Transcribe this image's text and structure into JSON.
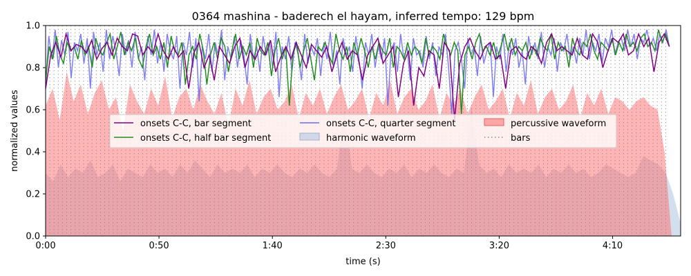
{
  "chart_data": {
    "type": "line",
    "title": "0364 mashina - baderech el hayam, inferred tempo: 129 bpm",
    "xlabel": "time (s)",
    "ylabel": "normalized values",
    "xlim": [
      0,
      280
    ],
    "ylim": [
      0,
      1.0
    ],
    "x_ticks": [
      {
        "value": 0,
        "label": "0:00"
      },
      {
        "value": 50,
        "label": "0:50"
      },
      {
        "value": 100,
        "label": "1:40"
      },
      {
        "value": 150,
        "label": "2:30"
      },
      {
        "value": 200,
        "label": "3:20"
      },
      {
        "value": 250,
        "label": "4:10"
      }
    ],
    "y_ticks": [
      {
        "value": 0.0,
        "label": "0.0"
      },
      {
        "value": 0.2,
        "label": "0.2"
      },
      {
        "value": 0.4,
        "label": "0.4"
      },
      {
        "value": 0.6,
        "label": "0.6"
      },
      {
        "value": 0.8,
        "label": "0.8"
      },
      {
        "value": 1.0,
        "label": "1.0"
      }
    ],
    "grid": false,
    "legend_position": "center",
    "bars": {
      "start": 0,
      "end": 275,
      "interval": 1.86
    },
    "series": [
      {
        "name": "onsets C-C, bar segment",
        "color": "#800080",
        "x_start": 0,
        "x_end": 275,
        "values": [
          0.7,
          0.86,
          0.92,
          0.85,
          0.96,
          0.88,
          0.91,
          0.9,
          0.87,
          0.93,
          0.84,
          0.89,
          0.92,
          0.86,
          0.94,
          0.9,
          0.88,
          0.96,
          0.95,
          0.86,
          0.9,
          0.87,
          0.96,
          0.88,
          0.84,
          0.9,
          0.85,
          0.88,
          0.7,
          0.87,
          0.92,
          0.8,
          0.86,
          0.74,
          0.9,
          0.86,
          0.82,
          0.9,
          0.94,
          0.8,
          0.88,
          0.84,
          0.9,
          0.86,
          0.93,
          0.78,
          0.85,
          0.9,
          0.84,
          0.92,
          0.86,
          0.8,
          0.91,
          0.88,
          0.85,
          0.9,
          0.78,
          0.86,
          0.92,
          0.84,
          0.88,
          0.86,
          0.74,
          0.86,
          0.9,
          0.94,
          0.82,
          0.86,
          0.9,
          0.66,
          0.82,
          0.88,
          0.62,
          0.8,
          0.76,
          0.88,
          0.86,
          0.7,
          0.92,
          0.88,
          0.55,
          0.82,
          0.9,
          0.94,
          0.88,
          0.84,
          0.9,
          0.92,
          0.84,
          0.86,
          0.7,
          0.88,
          0.9,
          0.86,
          0.84,
          0.9,
          0.88,
          0.82,
          0.92,
          0.96,
          0.88,
          0.9,
          0.88,
          0.86,
          0.94,
          0.86,
          0.84,
          0.96,
          0.92,
          0.8,
          0.88,
          0.94,
          0.92,
          0.96,
          0.86,
          0.88,
          0.96,
          0.9,
          0.94,
          0.78,
          0.92,
          0.96,
          0.9
        ]
      },
      {
        "name": "onsets C-C, half bar segment",
        "color": "#228b22",
        "x_start": 0,
        "x_end": 275,
        "values": [
          0.74,
          0.9,
          0.84,
          0.95,
          0.86,
          0.82,
          0.92,
          0.88,
          0.9,
          0.84,
          0.93,
          0.86,
          0.9,
          0.8,
          0.94,
          0.88,
          0.86,
          0.92,
          0.96,
          0.84,
          0.9,
          0.97,
          0.86,
          0.92,
          0.88,
          0.94,
          0.84,
          0.8,
          0.9,
          0.96,
          0.86,
          0.9,
          0.84,
          0.92,
          0.8,
          0.95,
          0.88,
          0.86,
          0.92,
          0.72,
          0.86,
          0.9,
          0.84,
          0.96,
          0.88,
          0.72,
          0.86,
          0.92,
          0.84,
          0.94,
          0.9,
          0.78,
          0.88,
          0.96,
          0.84,
          0.9,
          0.86,
          0.92,
          0.8,
          0.94,
          0.88,
          0.86,
          0.92,
          0.76,
          0.88,
          0.94,
          0.84,
          0.9,
          0.62,
          0.86,
          0.92,
          0.8,
          0.88,
          0.94,
          0.84,
          0.74,
          0.9,
          0.88,
          0.92,
          0.86,
          0.82,
          0.96,
          0.88,
          0.84,
          0.9,
          0.78,
          0.92,
          0.86,
          0.94,
          0.88,
          0.8,
          0.9,
          0.84,
          0.92,
          0.88,
          0.86,
          0.94,
          0.8,
          0.9,
          0.88,
          0.84,
          0.92,
          0.86,
          0.9,
          0.88,
          0.82,
          0.94,
          0.86,
          0.9,
          0.88,
          0.84,
          0.96,
          0.9,
          0.86,
          0.92,
          0.88,
          0.58,
          0.86,
          0.9,
          0.84,
          0.92,
          0.96,
          0.88,
          0.9,
          0.86,
          0.92,
          0.84,
          0.9,
          0.96,
          0.88,
          0.94,
          0.86,
          0.9,
          0.88,
          0.92,
          0.84,
          0.9,
          0.86,
          0.94,
          0.9,
          0.88,
          0.96,
          0.84,
          0.92,
          0.88,
          0.9,
          0.8,
          0.94,
          0.88,
          0.86,
          0.92,
          0.9,
          0.96,
          0.88,
          0.84,
          0.92,
          0.9,
          0.88,
          0.94,
          0.86,
          0.92,
          0.88,
          0.96,
          0.9,
          0.92,
          0.88,
          0.94,
          0.96,
          0.9,
          0.92,
          0.88,
          0.98,
          0.92,
          0.96,
          0.9
        ]
      },
      {
        "name": "onsets C-C, quarter segment",
        "color": "#6a6aee",
        "x_start": 0,
        "x_end": 275,
        "values": [
          0.72,
          0.95,
          0.84,
          0.98,
          0.8,
          0.93,
          0.86,
          0.97,
          0.75,
          0.92,
          0.88,
          0.96,
          0.82,
          0.94,
          0.7,
          0.97,
          0.86,
          0.92,
          0.78,
          0.98,
          0.84,
          0.95,
          0.88,
          0.76,
          0.96,
          0.86,
          0.93,
          0.8,
          0.97,
          0.84,
          0.9,
          0.74,
          0.95,
          0.86,
          0.98,
          0.82,
          0.92,
          0.78,
          0.96,
          0.88,
          0.84,
          0.95,
          0.7,
          0.92,
          0.86,
          0.97,
          0.8,
          0.94,
          0.64,
          0.9,
          0.84,
          0.96,
          0.78,
          0.92,
          0.86,
          0.98,
          0.74,
          0.9,
          0.84,
          0.95,
          0.8,
          0.93,
          0.86,
          0.72,
          0.96,
          0.84,
          0.9,
          0.78,
          0.95,
          0.86,
          0.92,
          0.8,
          0.97,
          0.66,
          0.9,
          0.84,
          0.95,
          0.78,
          0.92,
          0.86,
          0.74,
          0.96,
          0.82,
          0.9,
          0.86,
          0.94,
          0.76,
          0.92,
          0.84,
          0.97,
          0.8,
          0.88,
          0.72,
          0.94,
          0.86,
          0.9,
          0.78,
          0.95,
          0.84,
          0.7,
          0.92,
          0.86,
          0.96,
          0.8,
          0.9,
          0.84,
          0.94,
          0.62,
          0.88,
          0.92,
          0.78,
          0.96,
          0.84,
          0.9,
          0.74,
          0.94,
          0.86,
          0.88,
          0.8,
          0.95,
          0.84,
          0.92,
          0.76,
          0.9,
          0.86,
          0.96,
          0.8,
          0.58,
          0.88,
          0.92,
          0.84,
          0.7,
          0.94,
          0.86,
          0.9,
          0.76,
          0.95,
          0.82,
          0.88,
          0.92,
          0.66,
          0.9,
          0.84,
          0.96,
          0.78,
          0.92,
          0.86,
          0.94,
          0.8,
          0.88,
          0.72,
          0.95,
          0.86,
          0.92,
          0.84,
          0.97,
          0.8,
          0.9,
          0.86,
          0.94,
          0.78,
          0.92,
          0.88,
          0.96,
          0.84,
          0.9,
          0.82,
          0.94,
          0.86,
          0.98,
          0.84,
          0.92,
          0.88,
          0.96,
          0.82,
          0.94,
          0.9,
          0.98,
          0.86,
          0.92,
          0.94,
          0.88,
          0.98,
          0.9,
          0.96,
          0.84,
          0.94,
          0.92,
          0.98,
          0.9,
          0.94,
          0.88,
          0.96,
          0.92,
          0.98,
          0.9
        ]
      },
      {
        "name": "harmonic waveform",
        "color": "#b0c4de",
        "x_start": 0,
        "x_end": 280,
        "values": [
          0.3,
          0.26,
          0.34,
          0.28,
          0.32,
          0.3,
          0.36,
          0.28,
          0.3,
          0.34,
          0.26,
          0.32,
          0.3,
          0.28,
          0.34,
          0.3,
          0.32,
          0.28,
          0.34,
          0.3,
          0.36,
          0.32,
          0.28,
          0.34,
          0.3,
          0.32,
          0.3,
          0.34,
          0.28,
          0.32,
          0.3,
          0.34,
          0.3,
          0.28,
          0.32,
          0.3,
          0.34,
          0.3,
          0.28,
          0.32,
          0.6,
          0.32,
          0.3,
          0.34,
          0.3,
          0.28,
          0.32,
          0.3,
          0.34,
          0.28,
          0.32,
          0.3,
          0.34,
          0.3,
          0.28,
          0.32,
          0.3,
          0.62,
          0.34,
          0.3,
          0.32,
          0.28,
          0.34,
          0.3,
          0.32,
          0.3,
          0.34,
          0.28,
          0.32,
          0.3,
          0.34,
          0.3,
          0.32,
          0.28,
          0.3,
          0.34,
          0.32,
          0.3,
          0.28,
          0.3,
          0.38,
          0.36,
          0.34,
          0.3,
          0.2,
          0.06
        ]
      },
      {
        "name": "percussive waveform",
        "color": "#ff6b6b",
        "x_start": 0,
        "x_end": 276,
        "values": [
          0.62,
          0.7,
          0.55,
          0.78,
          0.64,
          0.72,
          0.58,
          0.68,
          0.74,
          0.6,
          0.66,
          0.5,
          0.72,
          0.64,
          0.58,
          0.7,
          0.62,
          0.76,
          0.56,
          0.66,
          0.7,
          0.6,
          0.72,
          0.64,
          0.58,
          0.68,
          0.52,
          0.7,
          0.62,
          0.74,
          0.58,
          0.66,
          0.7,
          0.6,
          0.64,
          0.72,
          0.56,
          0.68,
          0.62,
          0.7,
          0.58,
          0.66,
          0.72,
          0.6,
          0.64,
          0.7,
          0.56,
          0.68,
          0.62,
          0.74,
          0.58,
          0.66,
          0.7,
          0.6,
          0.64,
          0.72,
          0.56,
          0.68,
          0.62,
          0.7,
          0.58,
          0.66,
          0.72,
          0.6,
          0.64,
          0.7,
          0.56,
          0.68,
          0.62,
          0.74,
          0.58,
          0.66,
          0.7,
          0.6,
          0.64,
          0.72,
          0.56,
          0.68,
          0.62,
          0.7,
          0.58,
          0.66,
          0.64,
          0.6,
          0.64,
          0.66,
          0.62,
          0.6,
          0.4,
          0.0
        ]
      }
    ]
  }
}
